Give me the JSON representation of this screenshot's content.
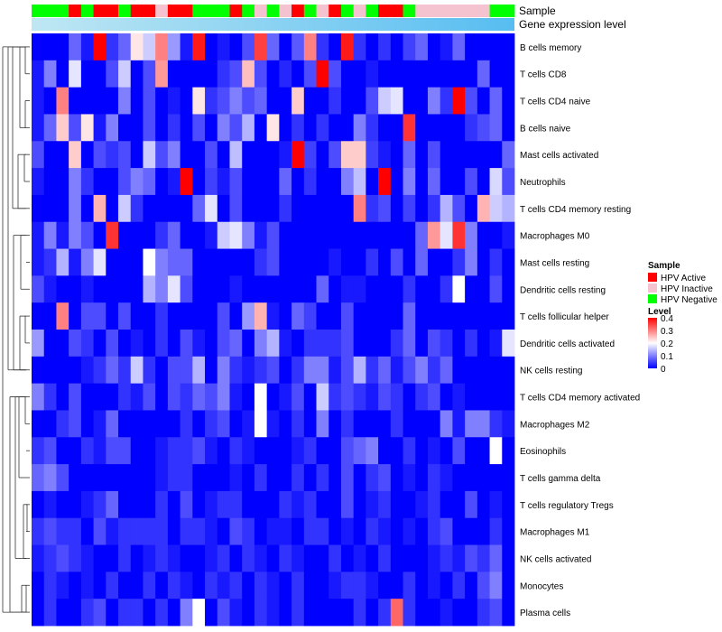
{
  "chart_data": {
    "type": "heatmap",
    "annotation_tracks": [
      "Sample",
      "Gene expression level"
    ],
    "sample_legend": {
      "title": "Sample",
      "entries": [
        {
          "label": "HPV Active",
          "color": "#ff0000"
        },
        {
          "label": "HPV Inactive",
          "color": "#f5c3cf"
        },
        {
          "label": "HPV Negative",
          "color": "#00ff00"
        }
      ]
    },
    "level_legend": {
      "title": "Level",
      "ticks": [
        "0.4",
        "0.3",
        "0.2",
        "0.1",
        "0"
      ],
      "range": [
        0,
        0.4
      ],
      "colors": [
        "#0000ff",
        "#ffffff",
        "#ff0000"
      ]
    },
    "sample_groups": [
      "N",
      "N",
      "N",
      "A",
      "N",
      "A",
      "A",
      "N",
      "A",
      "A",
      "I",
      "A",
      "A",
      "N",
      "N",
      "N",
      "A",
      "N",
      "I",
      "N",
      "I",
      "A",
      "N",
      "I",
      "A",
      "N",
      "I",
      "N",
      "A",
      "A",
      "N",
      "I",
      "I",
      "I",
      "I",
      "I",
      "I",
      "N",
      "N"
    ],
    "gene_expression_gradient": [
      "#bfe7f3",
      "#57bdf1"
    ],
    "rows": [
      "B cells memory",
      "T cells CD8",
      "T cells CD4 naive",
      "B cells naive",
      "Mast cells activated",
      "Neutrophils",
      "T cells CD4 memory resting",
      "Macrophages M0",
      "Mast cells resting",
      "Dendritic cells resting",
      "T cells follicular helper",
      "Dendritic cells activated",
      "NK cells resting",
      "T cells CD4 memory activated",
      "Macrophages M2",
      "Eosinophils",
      "T cells gamma delta",
      "T cells regulatory  Tregs",
      "Macrophages M1",
      "NK cells activated",
      "Monocytes",
      "Plasma cells"
    ],
    "values": [
      [
        0,
        0,
        0,
        0.08,
        0.02,
        0.4,
        0.04,
        0.08,
        0.22,
        0.16,
        0.3,
        0.12,
        0.02,
        0.38,
        0,
        0.02,
        0,
        0.06,
        0.35,
        0.08,
        0,
        0.07,
        0.3,
        0.04,
        0,
        0.38,
        0.04,
        0,
        0.04,
        0,
        0.05,
        0.08,
        0,
        0.02,
        0.08,
        0,
        0,
        0,
        0
      ],
      [
        0.02,
        0.1,
        0,
        0.18,
        0,
        0,
        0.06,
        0.16,
        0,
        0.06,
        0.28,
        0,
        0,
        0,
        0,
        0.04,
        0.06,
        0.25,
        0.06,
        0,
        0.03,
        0,
        0.06,
        0.4,
        0.06,
        0,
        0,
        0.02,
        0,
        0,
        0,
        0,
        0,
        0,
        0,
        0,
        0.08,
        0,
        0
      ],
      [
        0.02,
        0,
        0.3,
        0,
        0,
        0,
        0,
        0.1,
        0,
        0.06,
        0,
        0.02,
        0,
        0.22,
        0.04,
        0.06,
        0.1,
        0.06,
        0.08,
        0,
        0,
        0.24,
        0,
        0,
        0.04,
        0,
        0,
        0.06,
        0.16,
        0.18,
        0,
        0,
        0.1,
        0.04,
        0.4,
        0.06,
        0,
        0.08,
        0
      ],
      [
        0.02,
        0.08,
        0.24,
        0.06,
        0.22,
        0.02,
        0.1,
        0,
        0,
        0.06,
        0,
        0.04,
        0,
        0.06,
        0,
        0.1,
        0.06,
        0.14,
        0,
        0.22,
        0,
        0.04,
        0,
        0.04,
        0,
        0,
        0.1,
        0.04,
        0,
        0,
        0.36,
        0,
        0,
        0,
        0,
        0.04,
        0.06,
        0.08,
        0
      ],
      [
        0.06,
        0,
        0,
        0.24,
        0,
        0.06,
        0.04,
        0.06,
        0,
        0.16,
        0.06,
        0.1,
        0,
        0,
        0.06,
        0,
        0.15,
        0,
        0,
        0,
        0.02,
        0.4,
        0.05,
        0,
        0.06,
        0.24,
        0.24,
        0.05,
        0.02,
        0,
        0.08,
        0,
        0.06,
        0,
        0,
        0,
        0,
        0,
        0.08
      ],
      [
        0.02,
        0,
        0,
        0.1,
        0.04,
        0,
        0,
        0.06,
        0.1,
        0.08,
        0,
        0.02,
        0.4,
        0,
        0.05,
        0.02,
        0.06,
        0,
        0,
        0,
        0.08,
        0,
        0.04,
        0,
        0,
        0.1,
        0.15,
        0,
        0.4,
        0,
        0.1,
        0,
        0.08,
        0,
        0,
        0.06,
        0,
        0.17,
        0.06
      ],
      [
        0,
        0,
        0,
        0.1,
        0,
        0.26,
        0,
        0.16,
        0.04,
        0,
        0,
        0,
        0,
        0.08,
        0.18,
        0,
        0.06,
        0,
        0,
        0,
        0.04,
        0,
        0,
        0,
        0,
        0,
        0.3,
        0.04,
        0.06,
        0,
        0.05,
        0,
        0.04,
        0.14,
        0.06,
        0,
        0.26,
        0.16,
        0.14
      ],
      [
        0.02,
        0.1,
        0.02,
        0.1,
        0.06,
        0,
        0.36,
        0,
        0,
        0,
        0.04,
        0.08,
        0,
        0,
        0.02,
        0.16,
        0.18,
        0.1,
        0.02,
        0.06,
        0,
        0,
        0,
        0,
        0,
        0,
        0,
        0,
        0,
        0,
        0,
        0.08,
        0.28,
        0.18,
        0.36,
        0.1,
        0,
        0,
        0.02
      ],
      [
        0.02,
        0.04,
        0.14,
        0.02,
        0.1,
        0.18,
        0,
        0,
        0,
        0.2,
        0.1,
        0.08,
        0.08,
        0,
        0,
        0,
        0,
        0,
        0.04,
        0.06,
        0,
        0,
        0,
        0,
        0.02,
        0,
        0,
        0.04,
        0,
        0.06,
        0,
        0.08,
        0,
        0,
        0.04,
        0.1,
        0,
        0.04,
        0
      ],
      [
        0.06,
        0.02,
        0,
        0,
        0.02,
        0,
        0,
        0,
        0,
        0.14,
        0.1,
        0.18,
        0.06,
        0,
        0,
        0,
        0.02,
        0,
        0,
        0,
        0,
        0,
        0,
        0.08,
        0,
        0.02,
        0.02,
        0,
        0,
        0,
        0.04,
        0,
        0,
        0.04,
        0.2,
        0,
        0,
        0.06,
        0
      ],
      [
        0,
        0,
        0.3,
        0,
        0.06,
        0.06,
        0,
        0.06,
        0,
        0,
        0.04,
        0,
        0,
        0,
        0,
        0.06,
        0,
        0.12,
        0.26,
        0.02,
        0,
        0.08,
        0.05,
        0,
        0,
        0.06,
        0,
        0,
        0,
        0,
        0.08,
        0,
        0,
        0,
        0,
        0,
        0,
        0,
        0
      ],
      [
        0.12,
        0,
        0,
        0.06,
        0.04,
        0,
        0.06,
        0,
        0.02,
        0,
        0.04,
        0,
        0.06,
        0.02,
        0,
        0.06,
        0.08,
        0,
        0.1,
        0.14,
        0.02,
        0,
        0.04,
        0.04,
        0.04,
        0.06,
        0,
        0,
        0,
        0.04,
        0.08,
        0,
        0.06,
        0.04,
        0,
        0.04,
        0,
        0.02,
        0.18
      ],
      [
        0,
        0,
        0,
        0,
        0.02,
        0.04,
        0.08,
        0.04,
        0.16,
        0.04,
        0,
        0.06,
        0.06,
        0.14,
        0,
        0.1,
        0.04,
        0.02,
        0.04,
        0.06,
        0,
        0.04,
        0.1,
        0.1,
        0.02,
        0.06,
        0.14,
        0.04,
        0.08,
        0.02,
        0.06,
        0.1,
        0.04,
        0.08,
        0,
        0,
        0,
        0,
        0
      ],
      [
        0.1,
        0.04,
        0,
        0.06,
        0,
        0,
        0,
        0.04,
        0.02,
        0.06,
        0,
        0.06,
        0.04,
        0.08,
        0.06,
        0.1,
        0.02,
        0,
        0.2,
        0,
        0.02,
        0.06,
        0,
        0.16,
        0.04,
        0.06,
        0.04,
        0.02,
        0.06,
        0.04,
        0,
        0.04,
        0.06,
        0,
        0.02,
        0,
        0,
        0,
        0
      ],
      [
        0,
        0,
        0.04,
        0.06,
        0,
        0.02,
        0.08,
        0,
        0,
        0,
        0,
        0,
        0.04,
        0,
        0.04,
        0.06,
        0,
        0.02,
        0.2,
        0.02,
        0,
        0.04,
        0,
        0.1,
        0,
        0.04,
        0,
        0,
        0,
        0.04,
        0,
        0,
        0,
        0.1,
        0.02,
        0.1,
        0.1,
        0.04,
        0.02
      ],
      [
        0.04,
        0.06,
        0,
        0,
        0.04,
        0.02,
        0.06,
        0.06,
        0,
        0,
        0.02,
        0.04,
        0.04,
        0.06,
        0.02,
        0,
        0.04,
        0.02,
        0,
        0,
        0,
        0.02,
        0.04,
        0,
        0,
        0.06,
        0.08,
        0.1,
        0,
        0,
        0.04,
        0,
        0.02,
        0,
        0.06,
        0,
        0,
        0.2,
        0
      ],
      [
        0.08,
        0.1,
        0.06,
        0,
        0,
        0,
        0,
        0,
        0,
        0,
        0.02,
        0.04,
        0.04,
        0,
        0,
        0,
        0.02,
        0,
        0.04,
        0,
        0,
        0.04,
        0,
        0.04,
        0,
        0.06,
        0,
        0.04,
        0.06,
        0,
        0.02,
        0,
        0.04,
        0.02,
        0,
        0,
        0,
        0,
        0
      ],
      [
        0,
        0.02,
        0,
        0,
        0.02,
        0.04,
        0.08,
        0,
        0,
        0,
        0.04,
        0,
        0.06,
        0,
        0.02,
        0.04,
        0.04,
        0,
        0,
        0,
        0.04,
        0.02,
        0.04,
        0,
        0,
        0.06,
        0,
        0.02,
        0.04,
        0,
        0,
        0.02,
        0.04,
        0,
        0,
        0.06,
        0,
        0.02,
        0
      ],
      [
        0.04,
        0.06,
        0.04,
        0.04,
        0,
        0.06,
        0.02,
        0.04,
        0.04,
        0.04,
        0.04,
        0,
        0.04,
        0.04,
        0.02,
        0,
        0.06,
        0.04,
        0,
        0.02,
        0.02,
        0,
        0.04,
        0.04,
        0,
        0.02,
        0,
        0.04,
        0.02,
        0,
        0.02,
        0,
        0.04,
        0.06,
        0,
        0,
        0,
        0.04,
        0
      ],
      [
        0.02,
        0.04,
        0.06,
        0.04,
        0.02,
        0,
        0,
        0.04,
        0,
        0.02,
        0.04,
        0.02,
        0,
        0,
        0.02,
        0.04,
        0,
        0.04,
        0.02,
        0,
        0.04,
        0.02,
        0,
        0,
        0.04,
        0,
        0.02,
        0,
        0.04,
        0,
        0,
        0,
        0.02,
        0.04,
        0.02,
        0.06,
        0.04,
        0.08,
        0
      ],
      [
        0,
        0.04,
        0.02,
        0,
        0.02,
        0,
        0.04,
        0,
        0,
        0.04,
        0,
        0.04,
        0.02,
        0,
        0.04,
        0.02,
        0.04,
        0,
        0.04,
        0.02,
        0,
        0.04,
        0,
        0,
        0.02,
        0.04,
        0.04,
        0.02,
        0,
        0,
        0.04,
        0,
        0.02,
        0,
        0.04,
        0,
        0.06,
        0.1,
        0
      ],
      [
        0,
        0.04,
        0,
        0,
        0.04,
        0.06,
        0,
        0.04,
        0.04,
        0,
        0.04,
        0,
        0.1,
        0.2,
        0,
        0.06,
        0.02,
        0,
        0.04,
        0.02,
        0,
        0.04,
        0,
        0,
        0,
        0,
        0.04,
        0,
        0.04,
        0.32,
        0.04,
        0,
        0,
        0.02,
        0,
        0,
        0.04,
        0.06,
        0
      ]
    ]
  }
}
